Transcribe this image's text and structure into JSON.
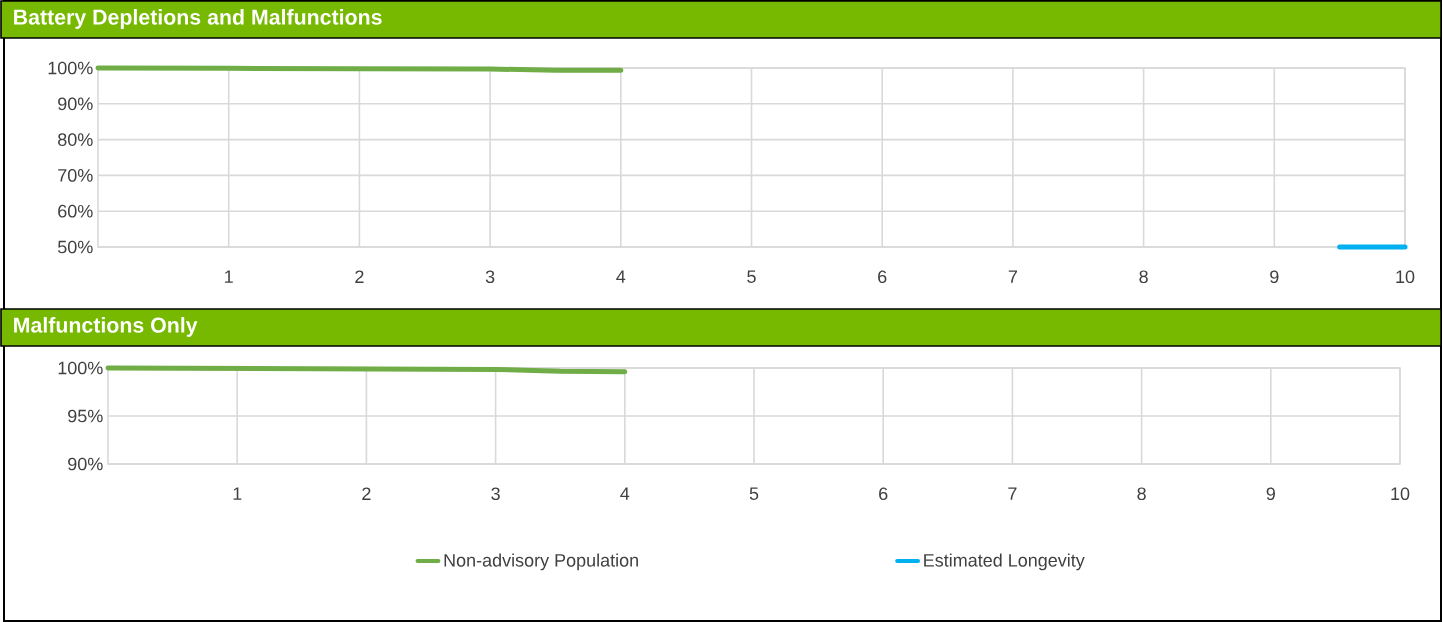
{
  "chart_data": [
    {
      "type": "line",
      "title": "Battery Depletions and Malfunctions",
      "xlim": [
        0,
        10
      ],
      "xticks": [
        1,
        2,
        3,
        4,
        5,
        6,
        7,
        8,
        9,
        10
      ],
      "ylim": [
        50,
        100
      ],
      "yticks": [
        {
          "value": 50,
          "label": "50%"
        },
        {
          "value": 60,
          "label": "60%"
        },
        {
          "value": 70,
          "label": "70%"
        },
        {
          "value": 80,
          "label": "80%"
        },
        {
          "value": 90,
          "label": "90%"
        },
        {
          "value": 100,
          "label": "100%"
        }
      ],
      "grid": true,
      "legend": "bottom",
      "series": [
        {
          "name": "Non-advisory Population",
          "color": "#70ad47",
          "x": [
            0,
            1,
            2,
            3,
            3.5,
            4
          ],
          "values": [
            100,
            99.9,
            99.8,
            99.7,
            99.4,
            99.4
          ]
        },
        {
          "name": "Estimated Longevity",
          "color": "#00b0f0",
          "x": [
            9.5,
            10
          ],
          "values": [
            50,
            50
          ]
        }
      ]
    },
    {
      "type": "line",
      "title": "Malfunctions Only",
      "xlim": [
        0,
        10
      ],
      "xticks": [
        1,
        2,
        3,
        4,
        5,
        6,
        7,
        8,
        9,
        10
      ],
      "ylim": [
        90,
        100
      ],
      "yticks": [
        {
          "value": 90,
          "label": "90%"
        },
        {
          "value": 95,
          "label": "95%"
        },
        {
          "value": 100,
          "label": "100%"
        }
      ],
      "grid": true,
      "series": [
        {
          "color": "#70ad47",
          "x": [
            0,
            1,
            2,
            3,
            3.5,
            4
          ],
          "values": [
            100,
            99.95,
            99.9,
            99.85,
            99.65,
            99.6
          ]
        }
      ]
    }
  ]
}
